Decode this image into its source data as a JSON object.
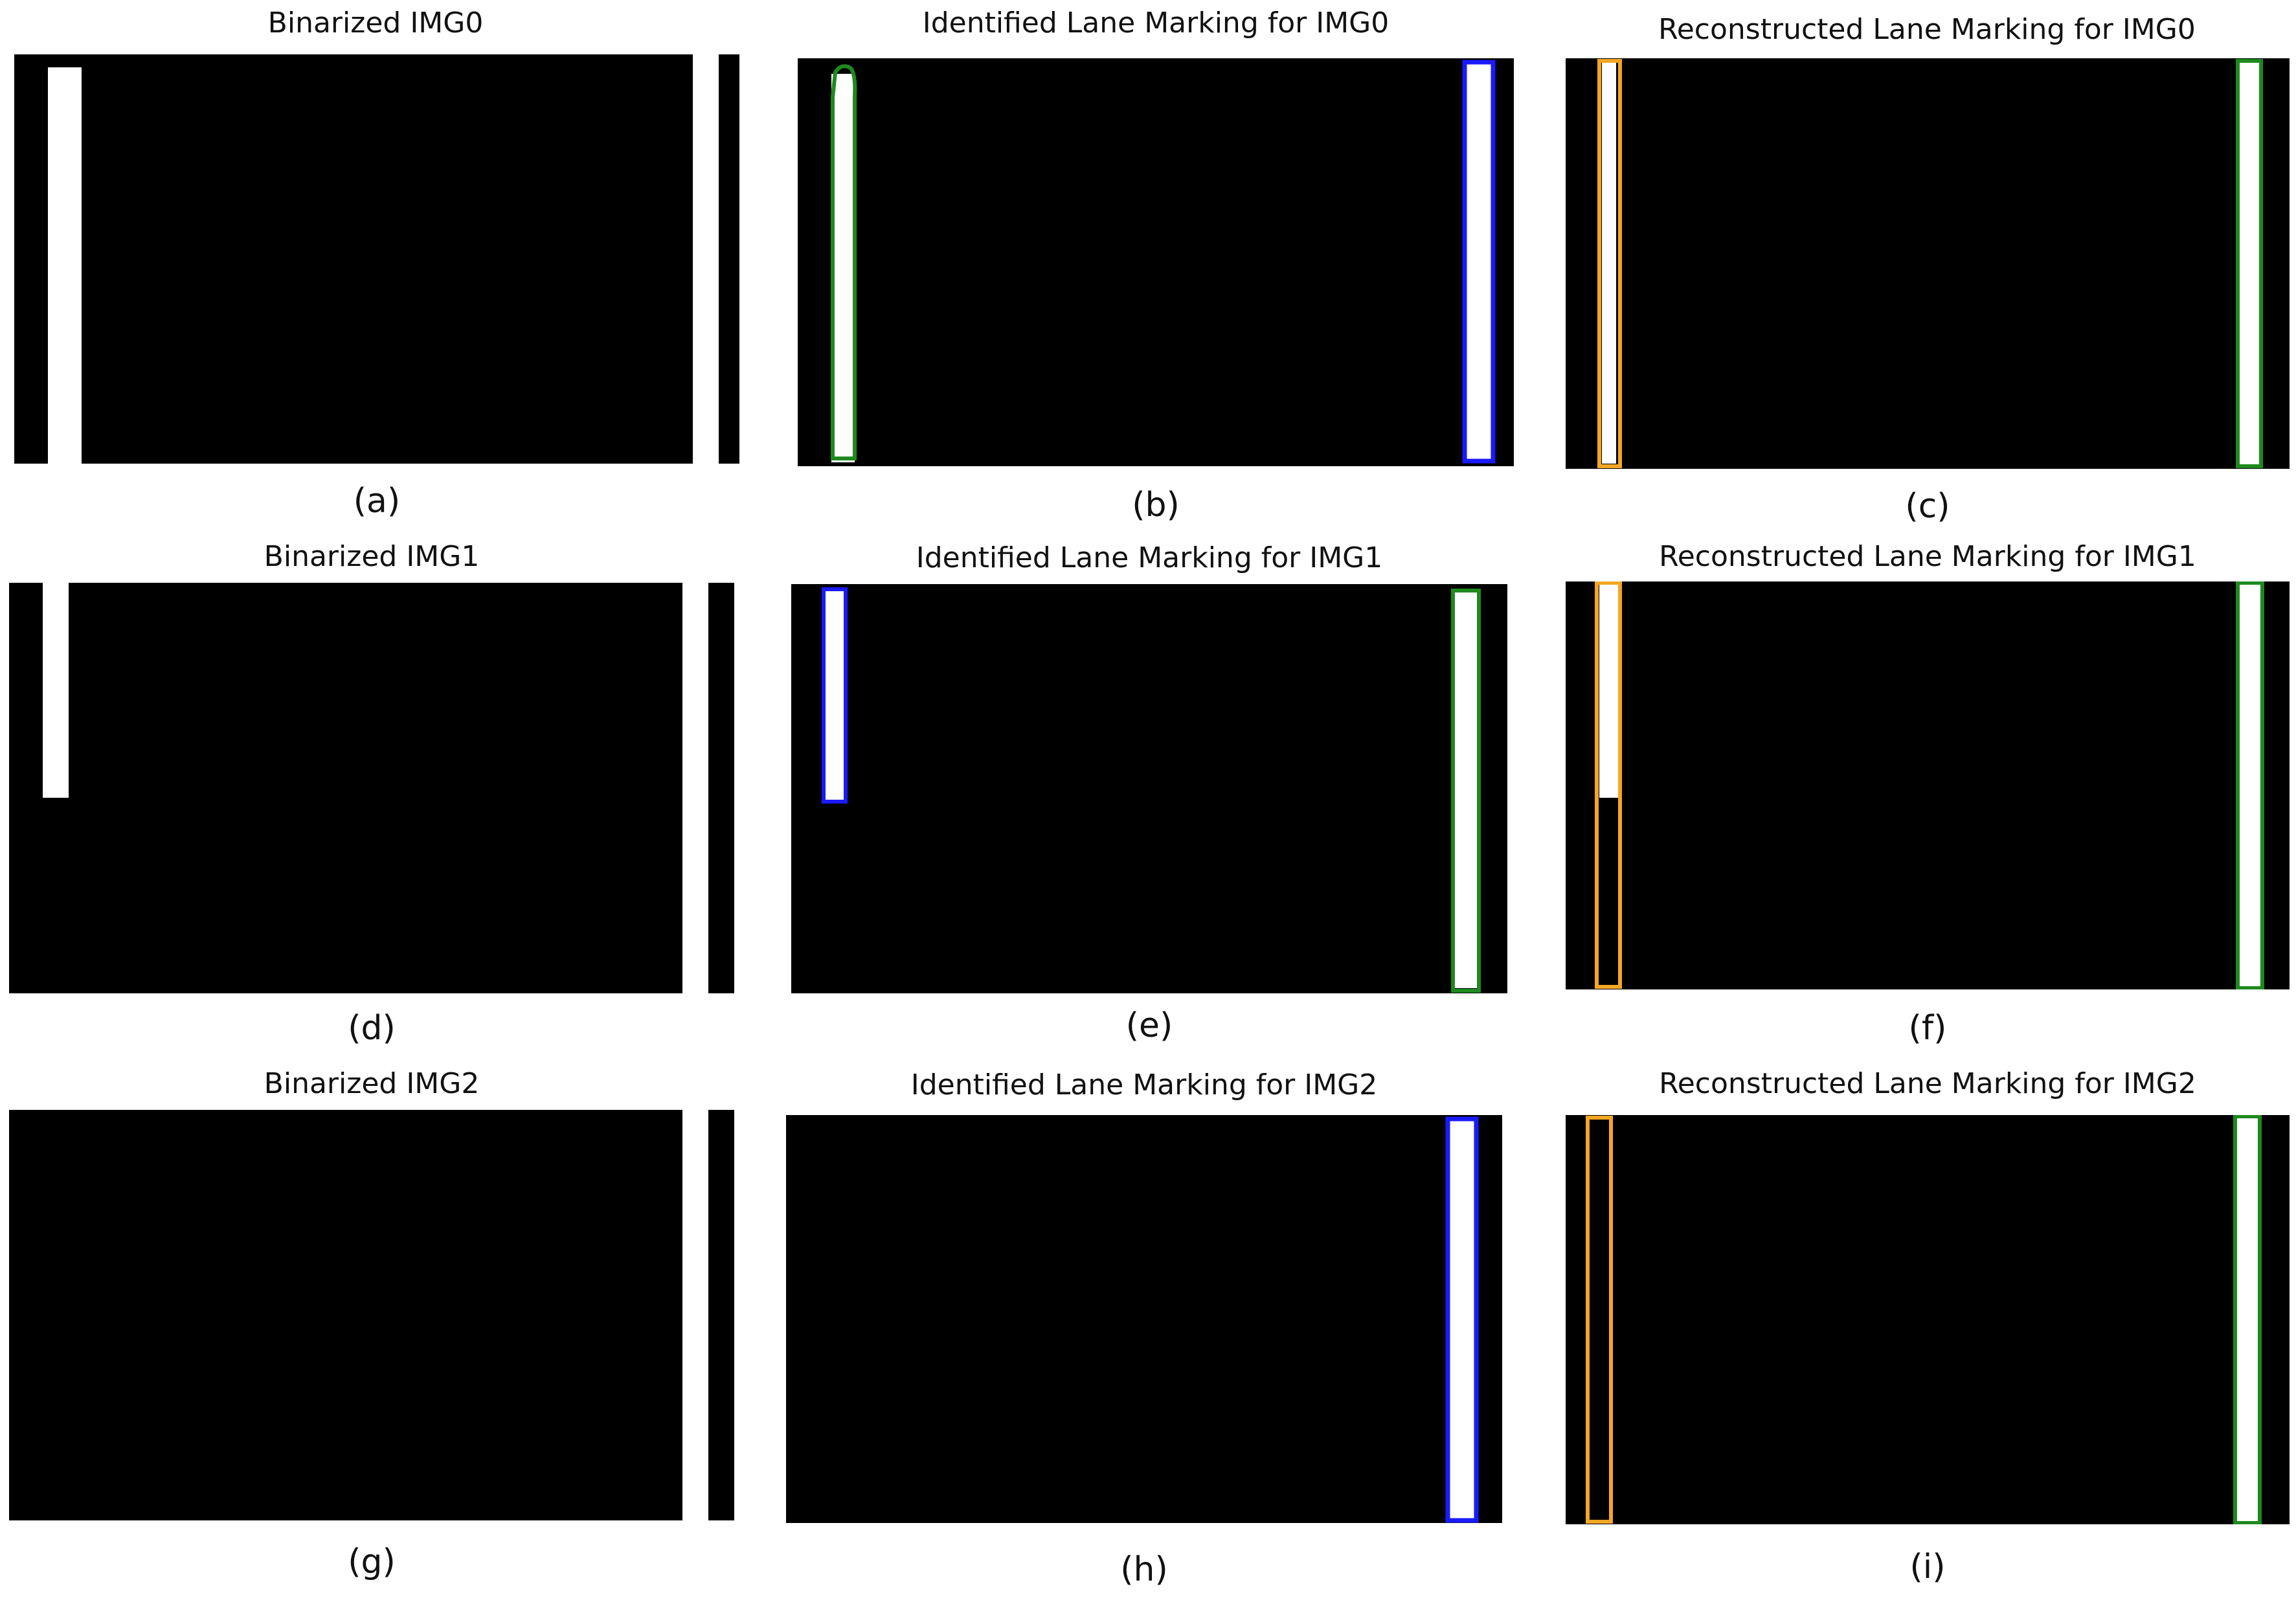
{
  "figure": {
    "panels": [
      {
        "id": "a",
        "title": "Binarized IMG0",
        "caption": "(a)"
      },
      {
        "id": "b",
        "title": "Identified Lane Marking for IMG0",
        "caption": "(b)"
      },
      {
        "id": "c",
        "title": "Reconstructed Lane Marking for IMG0",
        "caption": "(c)"
      },
      {
        "id": "d",
        "title": "Binarized IMG1",
        "caption": "(d)"
      },
      {
        "id": "e",
        "title": "Identified Lane Marking for IMG1",
        "caption": "(e)"
      },
      {
        "id": "f",
        "title": "Reconstructed Lane Marking for IMG1",
        "caption": "(f)"
      },
      {
        "id": "g",
        "title": "Binarized IMG2",
        "caption": "(g)"
      },
      {
        "id": "h",
        "title": "Identified Lane Marking for IMG2",
        "caption": "(h)"
      },
      {
        "id": "i",
        "title": "Reconstructed Lane Marking for IMG2",
        "caption": "(i)"
      }
    ]
  },
  "colors": {
    "background": "#000000",
    "lane_marking": "#ffffff",
    "outline_green": "#1e8a1e",
    "outline_blue": "#1a1aff",
    "outline_orange": "#f5a623"
  }
}
